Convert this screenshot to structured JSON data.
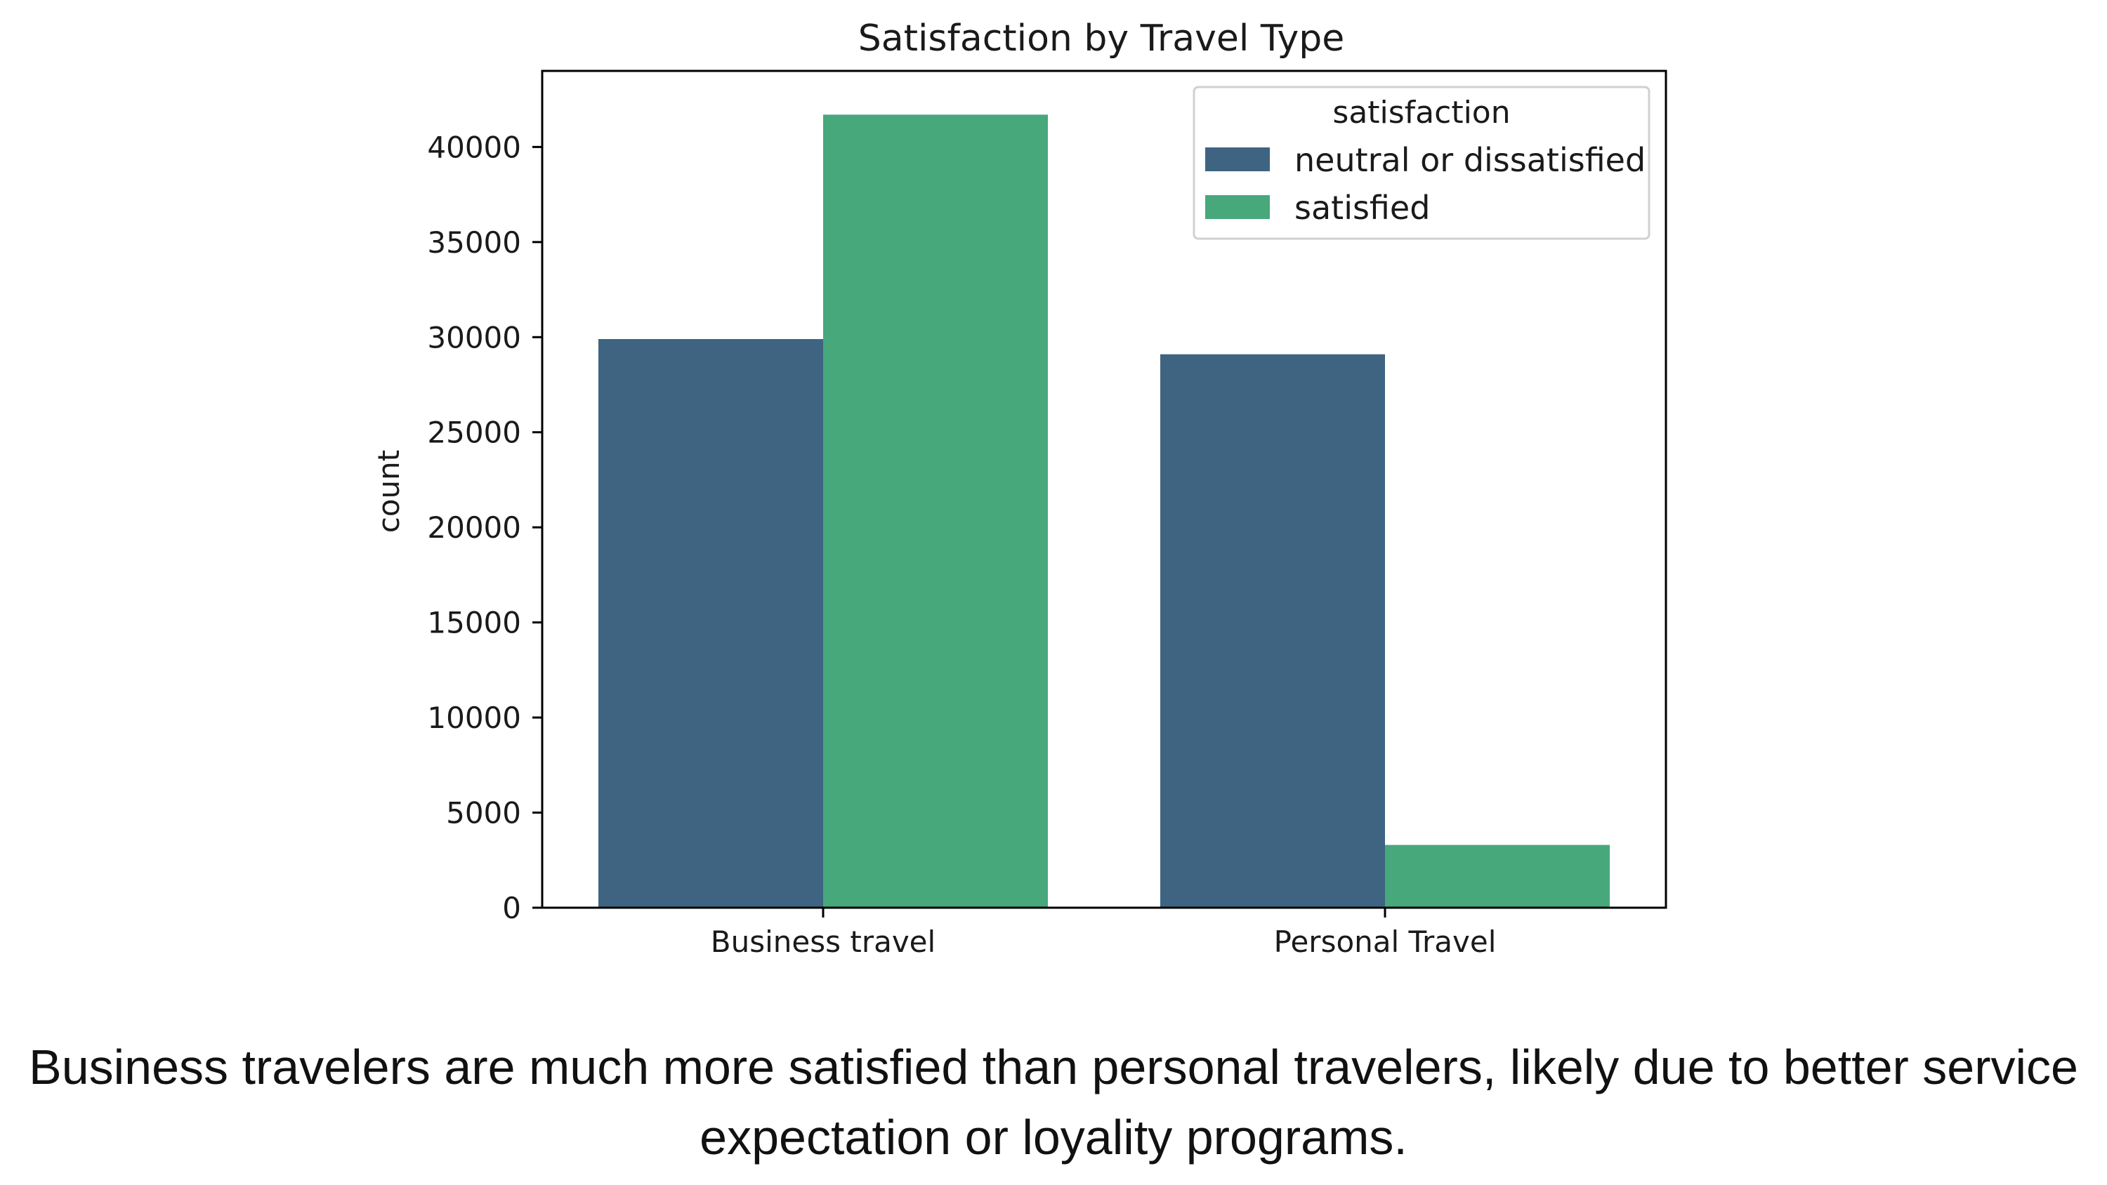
{
  "chart_data": {
    "type": "bar",
    "title": "Satisfaction by Travel Type",
    "xlabel": "",
    "ylabel": "count",
    "categories": [
      "Business travel",
      "Personal Travel"
    ],
    "series": [
      {
        "name": "neutral or dissatisfied",
        "color": "#3e6482",
        "values": [
          29900,
          29100
        ]
      },
      {
        "name": "satisfied",
        "color": "#47a87b",
        "values": [
          41700,
          3300
        ]
      }
    ],
    "ylim": [
      0,
      44000
    ],
    "yticks": [
      0,
      5000,
      10000,
      15000,
      20000,
      25000,
      30000,
      35000,
      40000
    ],
    "grid": false,
    "legend": {
      "title": "satisfaction",
      "placement": "top-right"
    }
  },
  "caption": "Business travelers are much more satisfied than personal travelers, likely due to better service expectation or loyality programs."
}
